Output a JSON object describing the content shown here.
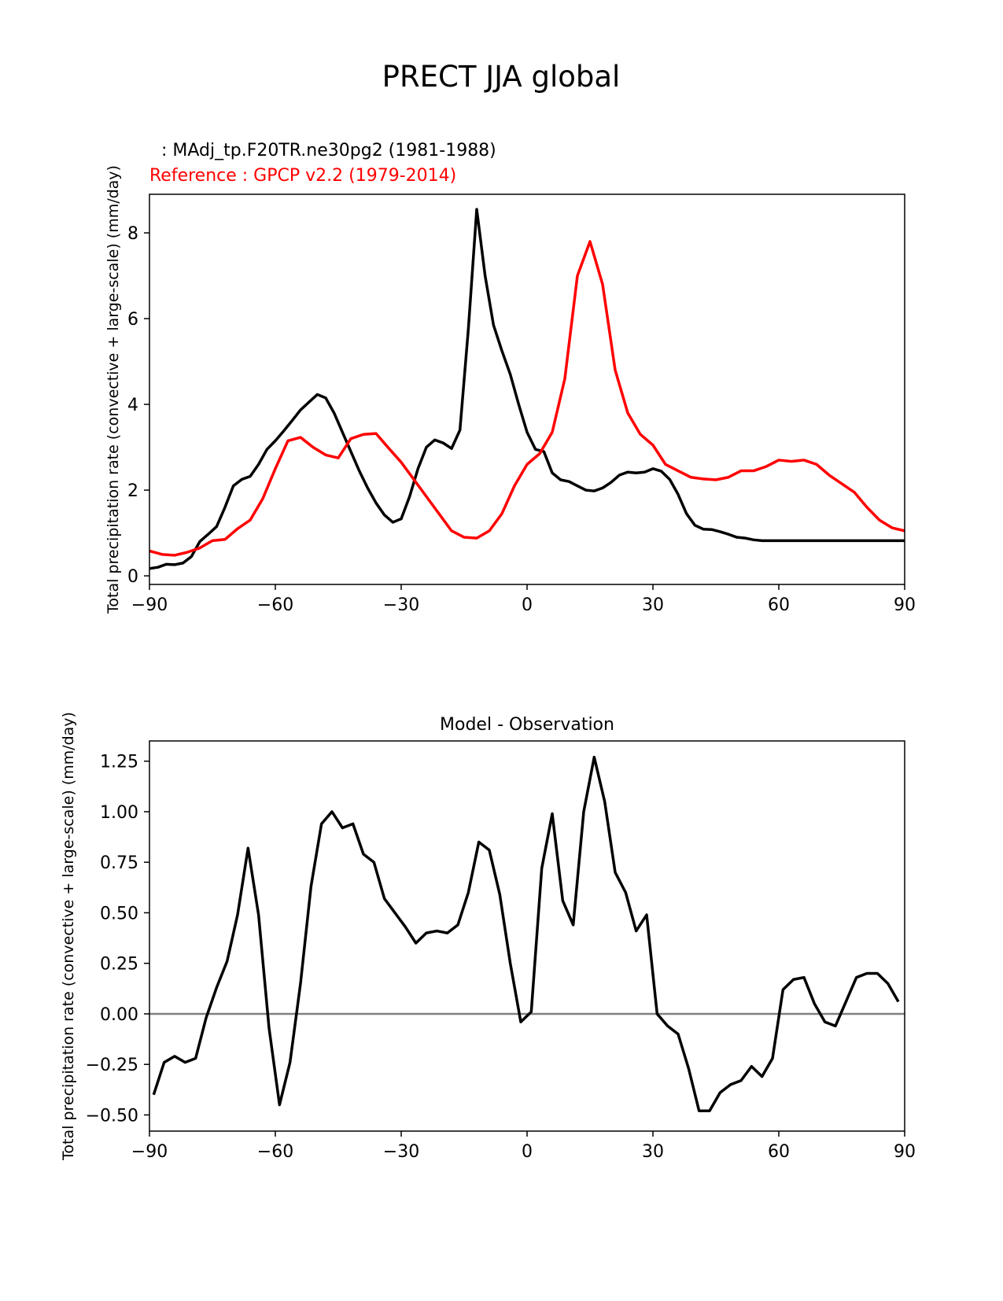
{
  "figure": {
    "title": "PRECT JJA global"
  },
  "chart_data": [
    {
      "type": "line",
      "title": "",
      "legend": [
        {
          "label": " : MAdj_tp.F20TR.ne30pg2 (1981-1988)",
          "color": "#000000"
        },
        {
          "label": "Reference : GPCP v2.2 (1979-2014)",
          "color": "#ff0000"
        }
      ],
      "xlabel": "",
      "ylabel": "Total precipitation rate (convective + large-scale) (mm/day)",
      "xlim": [
        -90,
        90
      ],
      "ylim": [
        -0.2,
        8.9
      ],
      "xticks": [
        -90,
        -60,
        -30,
        0,
        30,
        60,
        90
      ],
      "xtick_labels": [
        "−90",
        "−60",
        "−30",
        "0",
        "30",
        "60",
        "90"
      ],
      "yticks": [
        0,
        2,
        4,
        6,
        8
      ],
      "ytick_labels": [
        "0",
        "2",
        "4",
        "6",
        "8"
      ],
      "series": [
        {
          "name": "MAdj_tp.F20TR.ne30pg2 (1981-1988)",
          "color": "#000000",
          "x": [
            -90,
            -88,
            -86,
            -84,
            -82,
            -80,
            -78,
            -76,
            -74,
            -72,
            -70,
            -68,
            -66,
            -64,
            -62,
            -60,
            -58,
            -56,
            -54,
            -52,
            -50,
            -48,
            -46,
            -44,
            -42,
            -40,
            -38,
            -36,
            -34,
            -32,
            -30,
            -28,
            -26,
            -24,
            -22,
            -20,
            -18,
            -16,
            -14,
            -12,
            -10,
            -8,
            -6,
            -4,
            -2,
            0,
            2,
            4,
            6,
            8,
            10,
            12,
            14,
            16,
            18,
            20,
            22,
            24,
            26,
            28,
            30,
            32,
            34,
            36,
            38,
            40,
            42,
            44,
            46,
            48,
            50,
            52,
            54,
            56,
            58,
            60,
            62,
            64,
            66,
            68,
            70,
            72,
            74,
            76,
            78,
            80,
            82,
            84,
            86,
            88,
            90
          ],
          "y": [
            0.17,
            0.2,
            0.27,
            0.26,
            0.3,
            0.45,
            0.8,
            0.97,
            1.15,
            1.6,
            2.1,
            2.25,
            2.32,
            2.6,
            2.95,
            3.15,
            3.38,
            3.62,
            3.87,
            4.05,
            4.23,
            4.15,
            3.8,
            3.35,
            2.9,
            2.45,
            2.05,
            1.7,
            1.42,
            1.25,
            1.33,
            1.85,
            2.5,
            3.0,
            3.17,
            3.1,
            2.97,
            3.4,
            5.75,
            8.55,
            7.0,
            5.85,
            5.25,
            4.7,
            4.0,
            3.35,
            2.95,
            2.9,
            2.4,
            2.24,
            2.2,
            2.1,
            2.0,
            1.98,
            2.05,
            2.18,
            2.35,
            2.42,
            2.4,
            2.42,
            2.5,
            2.44,
            2.25,
            1.9,
            1.45,
            1.18,
            1.09,
            1.08,
            1.03,
            0.97,
            0.9,
            0.88,
            0.84,
            0.82,
            0.82,
            0.82,
            0.82,
            0.82,
            0.82,
            0.82,
            0.82,
            0.82,
            0.82,
            0.82,
            0.82,
            0.82,
            0.82,
            0.82,
            0.82,
            0.82,
            0.82
          ]
        },
        {
          "name": "Reference : GPCP v2.2 (1979-2014)",
          "color": "#ff0000",
          "x": [
            -90,
            -87,
            -84,
            -81,
            -78,
            -75,
            -72,
            -69,
            -66,
            -63,
            -60,
            -57,
            -54,
            -51,
            -48,
            -45,
            -42,
            -39,
            -36,
            -33,
            -30,
            -27,
            -24,
            -21,
            -18,
            -15,
            -12,
            -9,
            -6,
            -3,
            0,
            3,
            6,
            9,
            12,
            15,
            18,
            21,
            24,
            27,
            30,
            33,
            36,
            39,
            42,
            45,
            48,
            51,
            54,
            57,
            60,
            63,
            66,
            69,
            72,
            75,
            78,
            81,
            84,
            87,
            90
          ],
          "y": [
            0.58,
            0.5,
            0.48,
            0.55,
            0.65,
            0.82,
            0.85,
            1.1,
            1.3,
            1.8,
            2.5,
            3.15,
            3.23,
            3.0,
            2.82,
            2.75,
            3.2,
            3.3,
            3.32,
            2.98,
            2.65,
            2.25,
            1.85,
            1.45,
            1.05,
            0.9,
            0.88,
            1.05,
            1.45,
            2.1,
            2.6,
            2.85,
            3.35,
            4.6,
            7.0,
            7.8,
            6.8,
            4.8,
            3.8,
            3.3,
            3.05,
            2.6,
            2.45,
            2.3,
            2.26,
            2.24,
            2.3,
            2.45,
            2.45,
            2.55,
            2.7,
            2.67,
            2.7,
            2.6,
            2.35,
            2.15,
            1.95,
            1.6,
            1.3,
            1.12,
            1.05
          ]
        }
      ]
    },
    {
      "type": "line",
      "title": "Model - Observation",
      "xlabel": "",
      "ylabel": "Total precipitation rate (convective + large-scale) (mm/day)",
      "xlim": [
        -90,
        90
      ],
      "ylim": [
        -0.58,
        1.35
      ],
      "xticks": [
        -90,
        -60,
        -30,
        0,
        30,
        60,
        90
      ],
      "xtick_labels": [
        "−90",
        "−60",
        "−30",
        "0",
        "30",
        "60",
        "90"
      ],
      "yticks": [
        -0.5,
        -0.25,
        0.0,
        0.25,
        0.5,
        0.75,
        1.0,
        1.25
      ],
      "ytick_labels": [
        "−0.50",
        "−0.25",
        "0.00",
        "0.25",
        "0.50",
        "0.75",
        "1.00",
        "1.25"
      ],
      "zero_line": {
        "y": 0,
        "color": "#808080"
      },
      "series": [
        {
          "name": "Model - Observation",
          "color": "#000000",
          "x": [
            -89,
            -86.5,
            -84,
            -81.5,
            -79,
            -76.5,
            -74,
            -71.5,
            -69,
            -66.5,
            -64,
            -61.5,
            -59,
            -56.5,
            -54,
            -51.5,
            -49,
            -46.5,
            -44,
            -41.5,
            -39,
            -36.5,
            -34,
            -31.5,
            -29,
            -26.5,
            -24,
            -21.5,
            -19,
            -16.5,
            -14,
            -11.5,
            -9,
            -6.5,
            -4,
            -1.5,
            1,
            3.5,
            6,
            8.5,
            11,
            13.5,
            16,
            18.5,
            21,
            23.5,
            26,
            28.5,
            31,
            33.5,
            36,
            38.5,
            41,
            43.5,
            46,
            48.5,
            51,
            53.5,
            56,
            58.5,
            61,
            63.5,
            66,
            68.5,
            71,
            73.5,
            76,
            78.5,
            81,
            83.5,
            86,
            88.5
          ],
          "y": [
            -0.4,
            -0.24,
            -0.21,
            -0.24,
            -0.22,
            -0.02,
            0.13,
            0.26,
            0.49,
            0.82,
            0.49,
            -0.07,
            -0.45,
            -0.24,
            0.15,
            0.63,
            0.94,
            1.0,
            0.92,
            0.94,
            0.79,
            0.75,
            0.57,
            0.5,
            0.43,
            0.35,
            0.4,
            0.41,
            0.4,
            0.44,
            0.6,
            0.85,
            0.81,
            0.59,
            0.25,
            -0.04,
            0.01,
            0.72,
            0.99,
            0.56,
            0.44,
            1.0,
            1.27,
            1.05,
            0.7,
            0.6,
            0.41,
            0.49,
            0.0,
            -0.06,
            -0.1,
            -0.27,
            -0.48,
            -0.48,
            -0.39,
            -0.35,
            -0.33,
            -0.26,
            -0.31,
            -0.22,
            0.12,
            0.17,
            0.18,
            0.05,
            -0.04,
            -0.06,
            0.06,
            0.18,
            0.2,
            0.2,
            0.15,
            0.06
          ]
        }
      ]
    }
  ]
}
